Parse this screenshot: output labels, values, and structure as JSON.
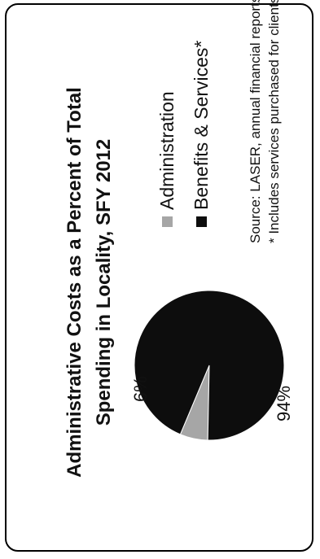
{
  "chart_data": {
    "type": "pie",
    "title_lines": [
      "Administrative Costs as a Percent of Total",
      "Spending in Locality, SFY 2012"
    ],
    "slices": [
      {
        "name": "Administration",
        "value": 6,
        "label": "6%",
        "color": "#a6a6a6"
      },
      {
        "name": "Benefits & Services*",
        "value": 94,
        "label": "94%",
        "color": "#0d0d0d"
      }
    ],
    "legend": [
      "Administration",
      "Benefits & Services*"
    ],
    "legend_placement": "right",
    "notes": [
      "Source: LASER, annual financial reports.",
      "* Includes services purchased for clients."
    ]
  }
}
